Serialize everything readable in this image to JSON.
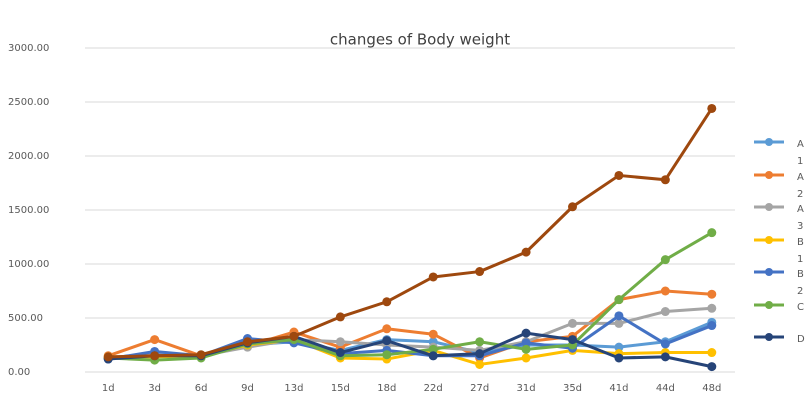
{
  "chart_data": {
    "type": "line",
    "title": "changes of Body weight",
    "categories": [
      "1d",
      "3d",
      "6d",
      "9d",
      "13d",
      "15d",
      "18d",
      "22d",
      "27d",
      "31d",
      "35d",
      "41d",
      "44d",
      "48d"
    ],
    "ylim": [
      0,
      3000
    ],
    "yticks": [
      {
        "value": 0,
        "label": "0.00"
      },
      {
        "value": 500,
        "label": "500.00"
      },
      {
        "value": 1000,
        "label": "1000.00"
      },
      {
        "value": 1500,
        "label": "1500.00"
      },
      {
        "value": 2000,
        "label": "2000.00"
      },
      {
        "value": 2500,
        "label": "2500.00"
      },
      {
        "value": 3000,
        "label": "3000.00"
      }
    ],
    "grid": true,
    "legend": "right",
    "series": [
      {
        "name": "A1",
        "color": "#5b9bd5",
        "values": [
          130,
          160,
          150,
          250,
          280,
          200,
          300,
          280,
          180,
          250,
          250,
          230,
          280,
          460
        ]
      },
      {
        "name": "A2",
        "color": "#ed7d31",
        "values": [
          150,
          300,
          150,
          240,
          370,
          230,
          400,
          350,
          130,
          280,
          330,
          670,
          750,
          720
        ]
      },
      {
        "name": "A3",
        "color": "#a5a5a5",
        "values": [
          130,
          170,
          150,
          230,
          300,
          280,
          250,
          230,
          200,
          280,
          450,
          450,
          560,
          590
        ]
      },
      {
        "name": "B1",
        "color": "#ffc000",
        "values": [
          140,
          140,
          150,
          250,
          300,
          130,
          120,
          200,
          70,
          130,
          200,
          170,
          180,
          180
        ]
      },
      {
        "name": "B2",
        "color": "#4472c4",
        "values": [
          120,
          190,
          150,
          310,
          270,
          170,
          200,
          150,
          150,
          270,
          220,
          520,
          260,
          430
        ]
      },
      {
        "name": "C",
        "color": "#70ad47",
        "values": [
          130,
          110,
          130,
          260,
          300,
          150,
          160,
          210,
          280,
          210,
          250,
          670,
          1040,
          1290
        ]
      },
      {
        "name": "D",
        "color": "#264478",
        "values": [
          120,
          150,
          150,
          270,
          330,
          180,
          290,
          150,
          170,
          360,
          300,
          130,
          140,
          50
        ]
      },
      {
        "color": "#9e480e",
        "values": [
          140,
          150,
          160,
          280,
          330,
          510,
          650,
          880,
          930,
          1110,
          1530,
          1820,
          1780,
          2440
        ]
      }
    ]
  }
}
